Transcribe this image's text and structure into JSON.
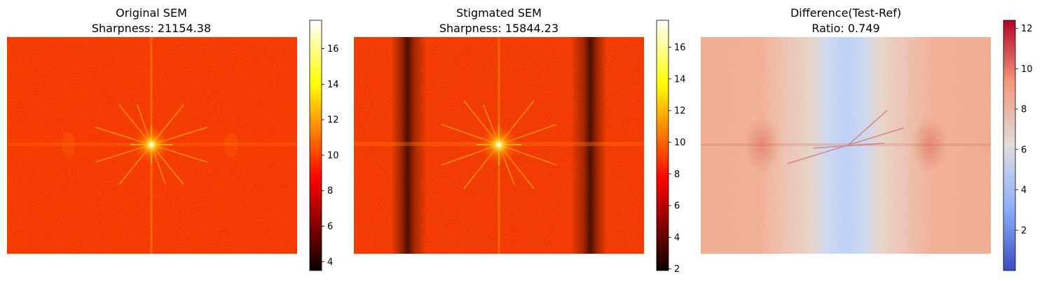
{
  "chart_data": [
    {
      "type": "heatmap",
      "title_line1": "Original SEM",
      "title_line2": "Sharpness: 21154.38",
      "colormap": "hot",
      "colorbar": {
        "vmin": 3.5,
        "vmax": 17.6,
        "ticks": [
          4,
          6,
          8,
          10,
          12,
          14,
          16
        ]
      },
      "features": {
        "background": 9.2,
        "peak": 17.6,
        "dark_bands": false
      }
    },
    {
      "type": "heatmap",
      "title_line1": "Stigmated SEM",
      "title_line2": "Sharpness: 15844.23",
      "colormap": "hot",
      "colorbar": {
        "vmin": 1.9,
        "vmax": 17.7,
        "ticks": [
          2,
          4,
          6,
          8,
          10,
          12,
          14,
          16
        ]
      },
      "features": {
        "background": 9.0,
        "peak": 17.7,
        "dark_bands": true
      }
    },
    {
      "type": "heatmap",
      "title_line1": "Difference(Test-Ref)",
      "title_line2": "Ratio: 0.749",
      "colormap": "coolwarm",
      "colorbar": {
        "vmin": 0.0,
        "vmax": 12.4,
        "ticks": [
          2,
          4,
          6,
          8,
          10,
          12
        ]
      },
      "features": {
        "background": 8.6,
        "center_band_value": 4.3
      }
    }
  ]
}
